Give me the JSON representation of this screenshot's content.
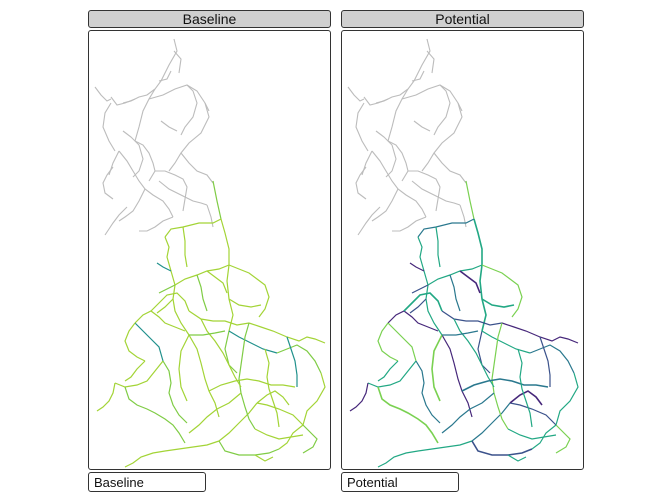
{
  "panels": [
    {
      "title": "Baseline",
      "legend_title": "Baseline",
      "scheme": "baseline"
    },
    {
      "title": "Potential",
      "legend_title": "Potential",
      "scheme": "potential"
    }
  ],
  "colors": {
    "scotland_network": "#bcbcbc",
    "baseline_main": "#a3d436",
    "baseline_alt": "#7fcc45",
    "baseline_high": "#21918c",
    "potential_low": "#7ad151",
    "potential_mid": "#22a884",
    "potential_mid2": "#2a788e",
    "potential_high": "#3b528b",
    "potential_max": "#46277a"
  }
}
